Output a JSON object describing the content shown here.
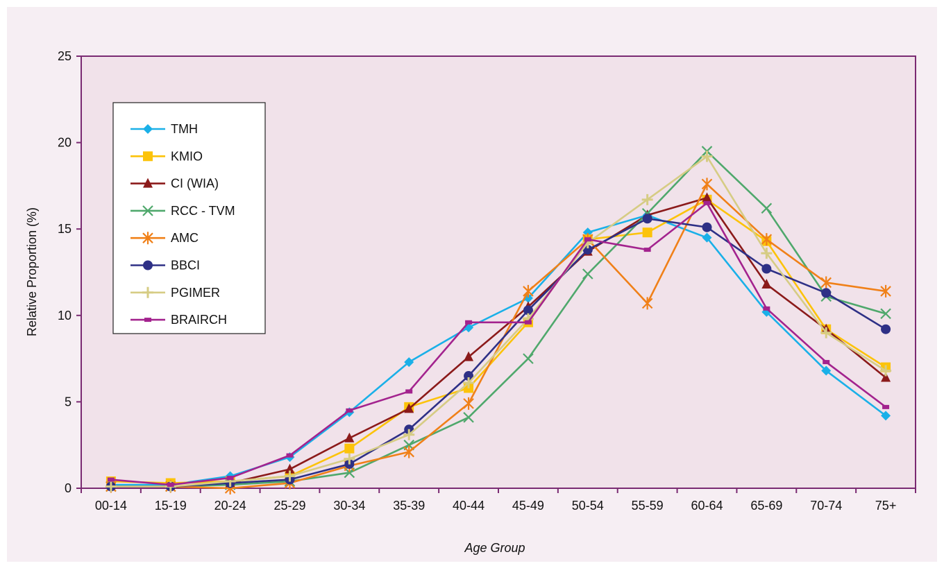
{
  "chart_data": {
    "type": "line",
    "title": "",
    "xlabel": "Age Group",
    "ylabel": "Relative Proportion (%)",
    "ylim": [
      0,
      25
    ],
    "yticks": [
      "0",
      "5",
      "10",
      "15",
      "20",
      "25"
    ],
    "categories": [
      "00-14",
      "15-19",
      "20-24",
      "25-29",
      "30-34",
      "35-39",
      "40-44",
      "45-49",
      "50-54",
      "55-59",
      "60-64",
      "65-69",
      "70-74",
      "75+"
    ],
    "grid": false,
    "legend_position": "upper-left",
    "series": [
      {
        "name": "TMH",
        "color": "#1ab0e8",
        "marker": "diamond",
        "values": [
          0.2,
          0.2,
          0.7,
          1.8,
          4.4,
          7.3,
          9.3,
          11.0,
          14.8,
          15.8,
          14.5,
          10.2,
          6.8,
          4.2
        ]
      },
      {
        "name": "KMIO",
        "color": "#fcc30a",
        "marker": "square",
        "values": [
          0.4,
          0.3,
          0.4,
          0.7,
          2.3,
          4.7,
          5.8,
          9.6,
          14.4,
          14.8,
          16.7,
          14.3,
          9.2,
          7.0
        ]
      },
      {
        "name": "CI (WIA)",
        "color": "#8b1a1a",
        "marker": "triangle",
        "values": [
          0.1,
          0.1,
          0.3,
          1.1,
          2.9,
          4.6,
          7.6,
          10.5,
          13.7,
          15.8,
          16.8,
          11.8,
          9.2,
          6.4
        ]
      },
      {
        "name": "RCC - TVM",
        "color": "#4fa86c",
        "marker": "x",
        "values": [
          0.1,
          0.1,
          0.2,
          0.4,
          0.9,
          2.5,
          4.1,
          7.5,
          12.4,
          15.9,
          19.5,
          16.2,
          11.1,
          10.1
        ]
      },
      {
        "name": "AMC",
        "color": "#f08018",
        "marker": "asterisk",
        "values": [
          0.1,
          0.1,
          0.0,
          0.3,
          1.3,
          2.1,
          4.9,
          11.4,
          14.4,
          10.7,
          17.6,
          14.4,
          11.9,
          11.4
        ]
      },
      {
        "name": "BBCI",
        "color": "#2e3086",
        "marker": "circle",
        "values": [
          0.1,
          0.1,
          0.3,
          0.5,
          1.4,
          3.4,
          6.5,
          10.3,
          13.8,
          15.6,
          15.1,
          12.7,
          11.3,
          9.2
        ]
      },
      {
        "name": "PGIMER",
        "color": "#d6cc84",
        "marker": "plus",
        "values": [
          0.1,
          0.1,
          0.4,
          0.7,
          1.7,
          3.1,
          6.1,
          9.8,
          14.2,
          16.7,
          19.2,
          13.6,
          9.0,
          6.8
        ]
      },
      {
        "name": "BRAIRCH",
        "color": "#a3238e",
        "marker": "dash",
        "values": [
          0.5,
          0.2,
          0.6,
          1.9,
          4.5,
          5.6,
          9.6,
          9.6,
          14.4,
          13.8,
          16.5,
          10.4,
          7.3,
          4.7
        ]
      }
    ]
  }
}
